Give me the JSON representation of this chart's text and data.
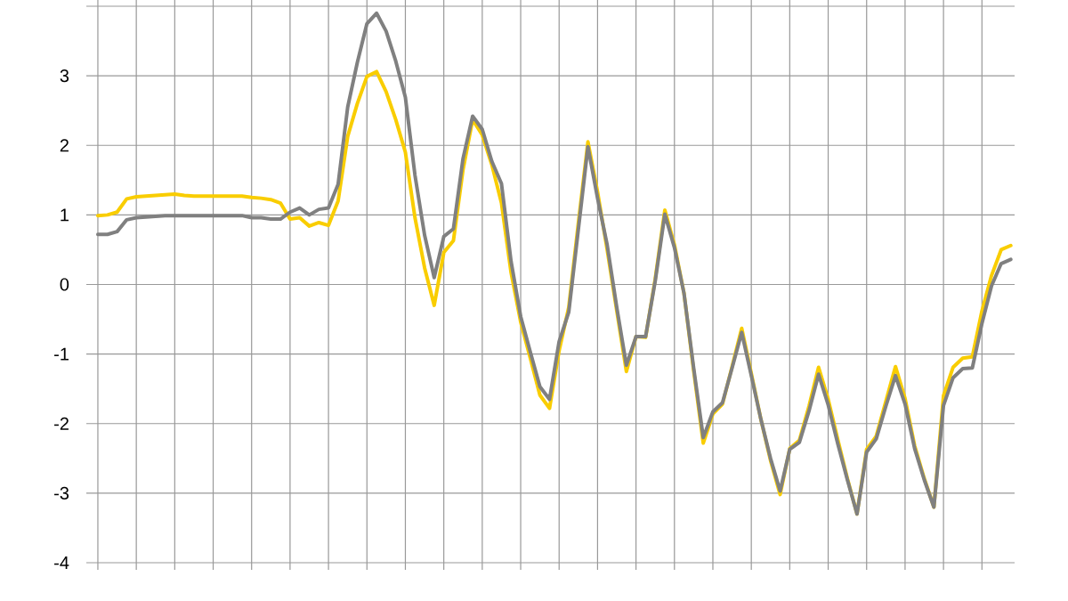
{
  "chart_data": {
    "type": "line",
    "categories": [
      null,
      null,
      null,
      null,
      null,
      null,
      null,
      null,
      null,
      null,
      null,
      null,
      null,
      null,
      null,
      null,
      null,
      null,
      null,
      null,
      null,
      null,
      null,
      null,
      null,
      null,
      null,
      null,
      null,
      null,
      null,
      null,
      null,
      null,
      null,
      null,
      null,
      null,
      null,
      null,
      null,
      null,
      null,
      null,
      null,
      null,
      null,
      null,
      null,
      null,
      null,
      null,
      null,
      null,
      null,
      null,
      null,
      null,
      null,
      null,
      null,
      null,
      null,
      null,
      null,
      null,
      null,
      null,
      null,
      null,
      null,
      null,
      null,
      null,
      null,
      null,
      null,
      null,
      null,
      null,
      null,
      null,
      null,
      null,
      null,
      null,
      null,
      null,
      null,
      null,
      null,
      null,
      null,
      null,
      null,
      null
    ],
    "series": [
      {
        "color": "#f9cd00",
        "values": [
          0.99,
          1.0,
          1.04,
          1.23,
          1.26,
          1.27,
          1.28,
          1.29,
          1.3,
          1.28,
          1.27,
          1.27,
          1.27,
          1.27,
          1.27,
          1.27,
          1.25,
          1.24,
          1.22,
          1.17,
          0.94,
          0.96,
          0.84,
          0.89,
          0.85,
          1.2,
          2.13,
          2.6,
          2.99,
          3.06,
          2.77,
          2.37,
          1.9,
          0.96,
          0.24,
          -0.3,
          0.46,
          0.63,
          1.65,
          2.37,
          2.15,
          1.72,
          1.17,
          0.17,
          -0.54,
          -1.06,
          -1.59,
          -1.78,
          -0.95,
          -0.33,
          0.88,
          2.05,
          1.33,
          0.5,
          -0.38,
          -1.25,
          -0.75,
          -0.76,
          0.08,
          1.07,
          0.57,
          -0.13,
          -1.24,
          -2.28,
          -1.86,
          -1.72,
          -1.18,
          -0.63,
          -1.28,
          -1.94,
          -2.53,
          -3.02,
          -2.36,
          -2.24,
          -1.75,
          -1.19,
          -1.65,
          -2.23,
          -2.79,
          -3.3,
          -2.37,
          -2.18,
          -1.68,
          -1.18,
          -1.64,
          -2.32,
          -2.79,
          -3.2,
          -1.6,
          -1.19,
          -1.06,
          -1.04,
          -0.38,
          0.13,
          0.5,
          0.56
        ]
      },
      {
        "color": "#808080",
        "values": [
          0.72,
          0.72,
          0.76,
          0.93,
          0.96,
          0.97,
          0.98,
          0.99,
          0.99,
          0.99,
          0.99,
          0.99,
          0.99,
          0.99,
          0.99,
          0.99,
          0.96,
          0.96,
          0.94,
          0.94,
          1.04,
          1.1,
          1.0,
          1.08,
          1.1,
          1.44,
          2.55,
          3.19,
          3.75,
          3.9,
          3.64,
          3.21,
          2.69,
          1.57,
          0.71,
          0.1,
          0.69,
          0.8,
          1.81,
          2.42,
          2.23,
          1.77,
          1.45,
          0.33,
          -0.46,
          -0.97,
          -1.47,
          -1.65,
          -0.82,
          -0.4,
          0.79,
          1.98,
          1.24,
          0.57,
          -0.33,
          -1.16,
          -0.75,
          -0.75,
          0.05,
          1.01,
          0.53,
          -0.13,
          -1.2,
          -2.2,
          -1.83,
          -1.7,
          -1.2,
          -0.69,
          -1.31,
          -1.94,
          -2.5,
          -2.97,
          -2.37,
          -2.27,
          -1.82,
          -1.29,
          -1.73,
          -2.29,
          -2.81,
          -3.3,
          -2.41,
          -2.22,
          -1.75,
          -1.31,
          -1.72,
          -2.36,
          -2.81,
          -3.2,
          -1.74,
          -1.34,
          -1.21,
          -1.2,
          -0.56,
          -0.02,
          0.3,
          0.36
        ]
      }
    ],
    "ylim": [
      -4,
      4
    ],
    "yticks": [
      -4,
      -3,
      -2,
      -1,
      0,
      1,
      2,
      3,
      {
        "value": 4,
        "label": null
      }
    ],
    "grid": true,
    "marker": "none",
    "line_style": "solid"
  }
}
